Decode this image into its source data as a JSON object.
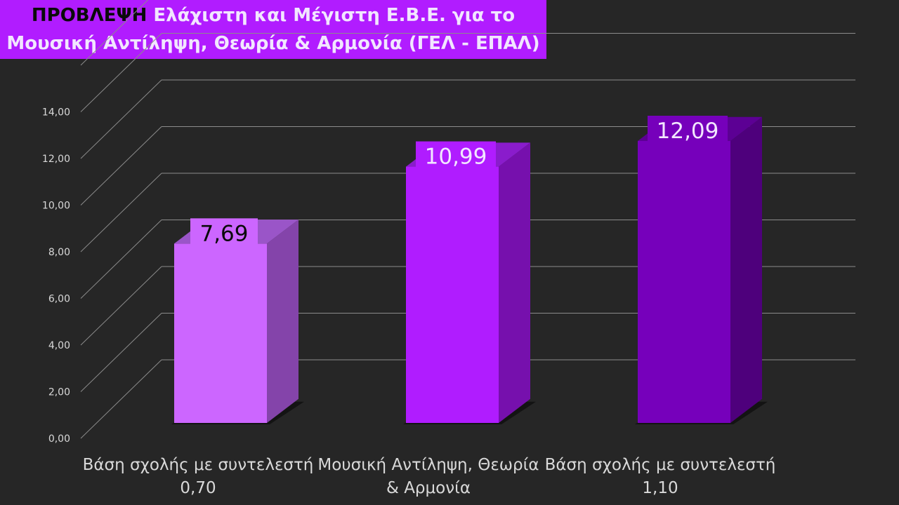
{
  "title": {
    "keyword": "ΠΡΟΒΛΕΨΗ",
    "line1_rest": "Ελάχιστη και Μέγιστη Ε.Β.Ε. για το",
    "line2": "Μουσική Αντίληψη, Θεωρία & Αρμονία (ΓΕΛ - ΕΠΑΛ)"
  },
  "colors": {
    "background": "#262626",
    "title_bg": "#b11cff",
    "title_keyword": "#0a0a0a",
    "title_text": "#f2e6ff",
    "gridline": "#8c8c8c",
    "text": "#d9d9d9"
  },
  "chart_data": {
    "type": "bar",
    "style": "3d-column",
    "categories": [
      [
        "Βάση σχολής με συντελεστή",
        "0,70"
      ],
      [
        "Μουσική Αντίληψη, Θεωρία",
        "& Αρμονία"
      ],
      [
        "Βάση σχολής με συντελεστή",
        "1,10"
      ]
    ],
    "values": [
      7.69,
      10.99,
      12.09
    ],
    "data_labels": [
      "7,69",
      "10,99",
      "12,09"
    ],
    "bar_colors": [
      {
        "front": "#cc66ff",
        "side": "#8444aa",
        "top": "#9a55c8",
        "label_bg": "#cc66ff",
        "label_fg": "#0a0a0a"
      },
      {
        "front": "#b01cff",
        "side": "#7610ad",
        "top": "#8a1ccc",
        "label_bg": "#b01cff",
        "label_fg": "#f2e6ff"
      },
      {
        "front": "#7600bb",
        "side": "#4e007c",
        "top": "#5c0094",
        "label_bg": "#7600bb",
        "label_fg": "#f2e6ff"
      }
    ],
    "ylim": [
      0,
      16
    ],
    "yticks": [
      0,
      2,
      4,
      6,
      8,
      10,
      12,
      14
    ],
    "ytick_labels": [
      "0,00",
      "2,00",
      "4,00",
      "6,00",
      "8,00",
      "10,00",
      "12,00",
      "14,00"
    ],
    "grid": true,
    "legend": "none"
  }
}
